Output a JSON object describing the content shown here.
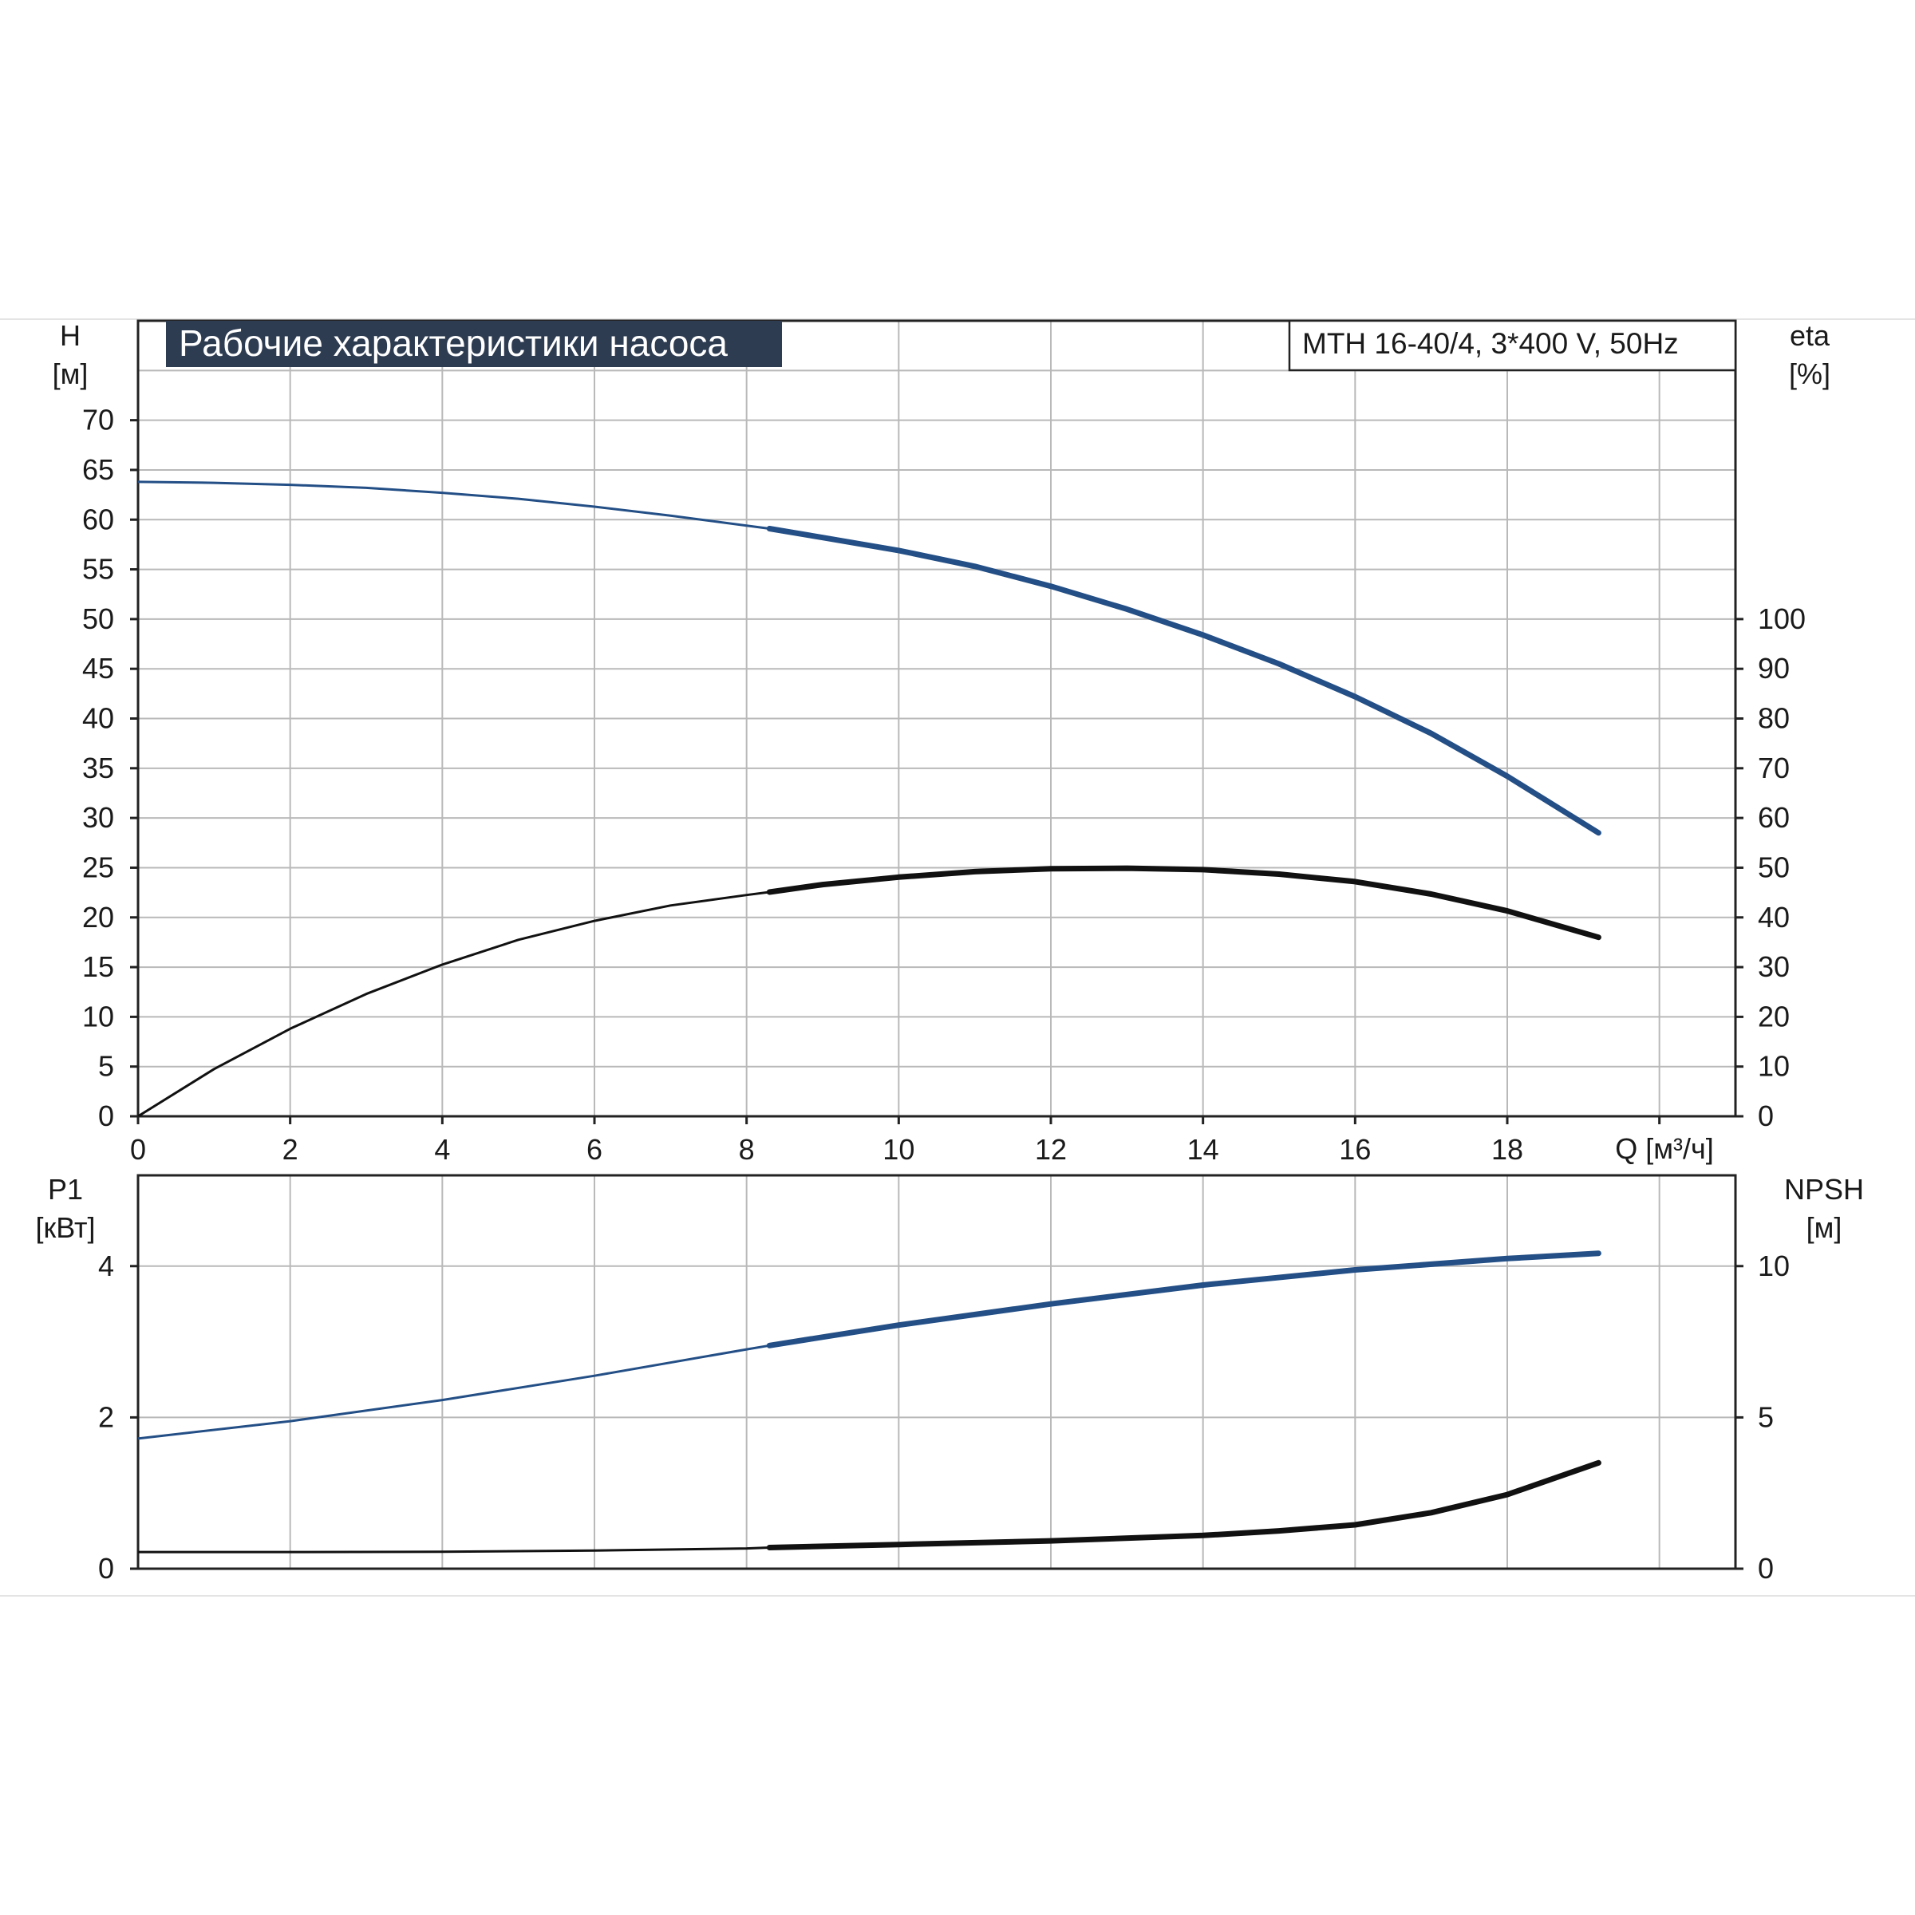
{
  "colors": {
    "blue": "#234f86",
    "black": "#111111",
    "title_bg": "#2e3c52",
    "grid": "#b9b9b9"
  },
  "chart_data": [
    {
      "type": "line",
      "title": "Рабочие характеристики насоса",
      "subtitle": "MTH 16-40/4, 3*400 V, 50Hz",
      "xlabel": "Q [м³/ч]",
      "ylabel_left": [
        "H",
        "[м]"
      ],
      "ylabel_right": [
        "eta",
        "[%]"
      ],
      "x_ticks": [
        "0",
        "2",
        "4",
        "6",
        "8",
        "10",
        "12",
        "14",
        "16",
        "18"
      ],
      "y_left_ticks": [
        "0",
        "5",
        "10",
        "15",
        "20",
        "25",
        "30",
        "35",
        "40",
        "45",
        "50",
        "55",
        "60",
        "65",
        "70"
      ],
      "y_right_ticks": [
        "0",
        "10",
        "20",
        "30",
        "40",
        "50",
        "60",
        "70",
        "80",
        "90",
        "100"
      ],
      "xlim": [
        0,
        21
      ],
      "ylim_left": [
        0,
        80
      ],
      "ylim_right": [
        0,
        160
      ],
      "grid": true,
      "series": [
        {
          "color": "#234f86",
          "axis": "left",
          "highlight_from": 8.3,
          "x": [
            0,
            1,
            2,
            3,
            4,
            5,
            6,
            7,
            8,
            8.3,
            9,
            10,
            11,
            12,
            13,
            14,
            15,
            16,
            17,
            18,
            19.2
          ],
          "y": [
            63.8,
            63.7,
            63.5,
            63.2,
            62.7,
            62.1,
            61.3,
            60.4,
            59.4,
            59.1,
            58.2,
            56.9,
            55.3,
            53.3,
            51.0,
            48.4,
            45.5,
            42.2,
            38.5,
            34.2,
            28.5
          ]
        },
        {
          "color": "#111111",
          "axis": "right",
          "highlight_from": 8.3,
          "x": [
            0,
            1,
            2,
            3,
            4,
            5,
            6,
            7,
            8,
            8.3,
            9,
            10,
            11,
            12,
            13,
            14,
            15,
            16,
            17,
            18,
            19.2
          ],
          "y": [
            0,
            9.5,
            17.6,
            24.6,
            30.5,
            35.5,
            39.3,
            42.4,
            44.5,
            45.1,
            46.6,
            48.1,
            49.2,
            49.8,
            49.9,
            49.6,
            48.7,
            47.2,
            44.7,
            41.3,
            36.0
          ]
        }
      ]
    },
    {
      "type": "line",
      "ylabel_left": [
        "P1",
        "[кВт]"
      ],
      "ylabel_right": [
        "NPSH",
        "[м]"
      ],
      "y_left_ticks": [
        "0",
        "2",
        "4"
      ],
      "y_right_ticks": [
        "0",
        "5",
        "10"
      ],
      "xlim": [
        0,
        21
      ],
      "ylim_left": [
        0,
        5.2
      ],
      "ylim_right": [
        0,
        13
      ],
      "grid": true,
      "series": [
        {
          "color": "#234f86",
          "axis": "left",
          "highlight_from": 8.3,
          "x": [
            0,
            2,
            4,
            6,
            8,
            8.3,
            10,
            12,
            14,
            16,
            18,
            19.2
          ],
          "y": [
            1.72,
            1.95,
            2.23,
            2.55,
            2.9,
            2.95,
            3.22,
            3.5,
            3.75,
            3.95,
            4.1,
            4.17
          ]
        },
        {
          "color": "#111111",
          "axis": "right",
          "highlight_from": 8.3,
          "x": [
            0,
            2,
            4,
            6,
            8,
            8.3,
            10,
            12,
            14,
            15,
            16,
            17,
            18,
            19.2
          ],
          "y": [
            0.55,
            0.55,
            0.56,
            0.6,
            0.67,
            0.7,
            0.8,
            0.92,
            1.1,
            1.25,
            1.45,
            1.85,
            2.45,
            3.5
          ]
        }
      ]
    }
  ]
}
